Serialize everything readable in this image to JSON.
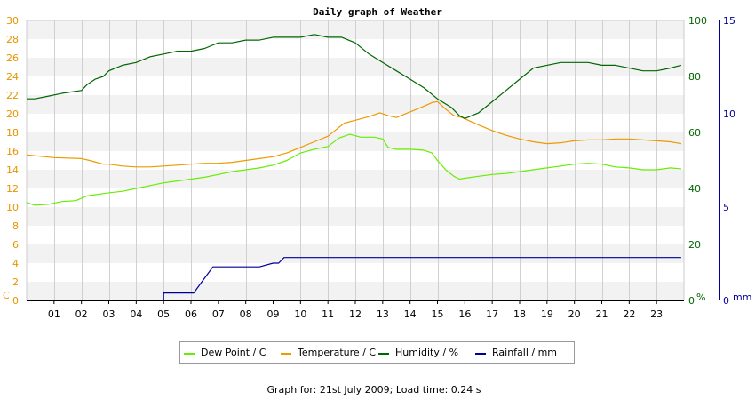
{
  "chart_data": {
    "type": "line",
    "title": "Daily graph of Weather",
    "footer": "Graph for: 21st July 2009; Load time: 0.24 s",
    "x_ticks": [
      "01",
      "02",
      "03",
      "04",
      "05",
      "06",
      "07",
      "08",
      "09",
      "10",
      "11",
      "12",
      "13",
      "14",
      "15",
      "16",
      "17",
      "18",
      "19",
      "20",
      "21",
      "22",
      "23"
    ],
    "xlim": [
      0,
      24
    ],
    "axes": {
      "left": {
        "unit_label": "C",
        "ylim": [
          0,
          30
        ],
        "ticks": [
          0,
          2,
          4,
          6,
          8,
          10,
          12,
          14,
          16,
          18,
          20,
          22,
          24,
          26,
          28,
          30
        ],
        "color": "#e69500"
      },
      "right1": {
        "unit_label": "%",
        "ylim": [
          0,
          100
        ],
        "ticks": [
          0,
          20,
          40,
          60,
          80,
          100
        ],
        "color": "#006600"
      },
      "right2": {
        "unit_label": "mm",
        "ylim": [
          0,
          15
        ],
        "ticks": [
          0,
          5,
          10,
          15
        ],
        "color": "#000099"
      }
    },
    "series": [
      {
        "name": "Dew Point / C",
        "axis": "left",
        "color": "#66ee00",
        "x": [
          0,
          0.3,
          0.8,
          1.3,
          1.8,
          2.2,
          2.9,
          3.5,
          4.0,
          4.5,
          5.0,
          5.5,
          6.0,
          6.5,
          7.0,
          7.5,
          8.0,
          8.5,
          9.0,
          9.5,
          10.0,
          10.5,
          11.0,
          11.4,
          11.8,
          12.2,
          12.7,
          13.0,
          13.2,
          13.5,
          14.0,
          14.5,
          14.8,
          15.0,
          15.3,
          15.6,
          15.8,
          16.0,
          16.5,
          17.0,
          17.5,
          18.0,
          18.5,
          19.0,
          19.5,
          20.0,
          20.5,
          21.0,
          21.5,
          22.0,
          22.5,
          23.0,
          23.5,
          23.9
        ],
        "y": [
          10.5,
          10.2,
          10.3,
          10.6,
          10.7,
          11.2,
          11.5,
          11.7,
          12.0,
          12.3,
          12.6,
          12.8,
          13.0,
          13.2,
          13.5,
          13.8,
          14.0,
          14.2,
          14.5,
          15.0,
          15.8,
          16.2,
          16.5,
          17.4,
          17.8,
          17.5,
          17.5,
          17.3,
          16.4,
          16.2,
          16.2,
          16.1,
          15.8,
          15.0,
          14.0,
          13.3,
          13.0,
          13.1,
          13.3,
          13.5,
          13.6,
          13.8,
          14.0,
          14.2,
          14.4,
          14.6,
          14.7,
          14.6,
          14.3,
          14.2,
          14.0,
          14.0,
          14.2,
          14.1
        ]
      },
      {
        "name": "Temperature / C",
        "axis": "left",
        "color": "#ee9900",
        "x": [
          0,
          0.3,
          1.0,
          2.0,
          2.3,
          2.8,
          3.0,
          3.5,
          4.0,
          4.5,
          5.0,
          5.5,
          6.0,
          6.5,
          7.0,
          7.5,
          8.0,
          8.5,
          9.0,
          9.5,
          10.0,
          10.5,
          11.0,
          11.3,
          11.6,
          12.0,
          12.5,
          12.9,
          13.2,
          13.5,
          14.0,
          14.5,
          14.8,
          15.0,
          15.3,
          15.6,
          15.9,
          16.2,
          16.5,
          17.0,
          17.5,
          18.0,
          18.5,
          19.0,
          19.5,
          20.0,
          20.5,
          21.0,
          21.5,
          22.0,
          22.5,
          23.0,
          23.5,
          23.9
        ],
        "y": [
          15.6,
          15.5,
          15.3,
          15.2,
          15.0,
          14.6,
          14.6,
          14.4,
          14.3,
          14.3,
          14.4,
          14.5,
          14.6,
          14.7,
          14.7,
          14.8,
          15.0,
          15.2,
          15.4,
          15.8,
          16.4,
          17.0,
          17.6,
          18.3,
          19.0,
          19.3,
          19.7,
          20.1,
          19.8,
          19.6,
          20.2,
          20.8,
          21.2,
          21.3,
          20.5,
          19.8,
          19.6,
          19.2,
          18.8,
          18.2,
          17.7,
          17.3,
          17.0,
          16.8,
          16.9,
          17.1,
          17.2,
          17.2,
          17.3,
          17.3,
          17.2,
          17.1,
          17.0,
          16.8
        ]
      },
      {
        "name": "Humidity / %",
        "axis": "right1",
        "color": "#006600",
        "x": [
          0,
          0.3,
          0.8,
          1.3,
          2.0,
          2.2,
          2.5,
          2.8,
          2.9,
          3.0,
          3.5,
          4.0,
          4.5,
          5.0,
          5.5,
          6.0,
          6.5,
          7.0,
          7.5,
          8.0,
          8.5,
          9.0,
          9.5,
          10.0,
          10.5,
          11.0,
          11.5,
          12.0,
          12.5,
          13.0,
          13.5,
          14.0,
          14.5,
          15.0,
          15.5,
          15.8,
          16.0,
          16.5,
          17.0,
          17.5,
          18.0,
          18.5,
          19.0,
          19.5,
          20.0,
          20.5,
          21.0,
          21.5,
          22.0,
          22.5,
          23.0,
          23.5,
          23.9
        ],
        "y": [
          72,
          72,
          73,
          74,
          75,
          77,
          79,
          80,
          81,
          82,
          84,
          85,
          87,
          88,
          89,
          89,
          90,
          92,
          92,
          93,
          93,
          94,
          94,
          94,
          95,
          94,
          94,
          92,
          88,
          85,
          82,
          79,
          76,
          72,
          69,
          66,
          65,
          67,
          71,
          75,
          79,
          83,
          84,
          85,
          85,
          85,
          84,
          84,
          83,
          82,
          82,
          83,
          84
        ]
      },
      {
        "name": "Rainfall / mm",
        "axis": "right2",
        "color": "#000099",
        "x": [
          0,
          5.0,
          5.0,
          6.1,
          6.4,
          6.6,
          6.8,
          7.0,
          8.5,
          9.0,
          9.2,
          9.4,
          10.0,
          15.0,
          20.0,
          23.9
        ],
        "y": [
          0,
          0,
          0.4,
          0.4,
          1.0,
          1.4,
          1.8,
          1.8,
          1.8,
          2.0,
          2.0,
          2.3,
          2.3,
          2.3,
          2.3,
          2.3
        ]
      }
    ],
    "legend": [
      "Dew Point / C",
      "Temperature / C",
      "Humidity / %",
      "Rainfall / mm"
    ],
    "legend_position": "bottom-center",
    "grid": true
  }
}
